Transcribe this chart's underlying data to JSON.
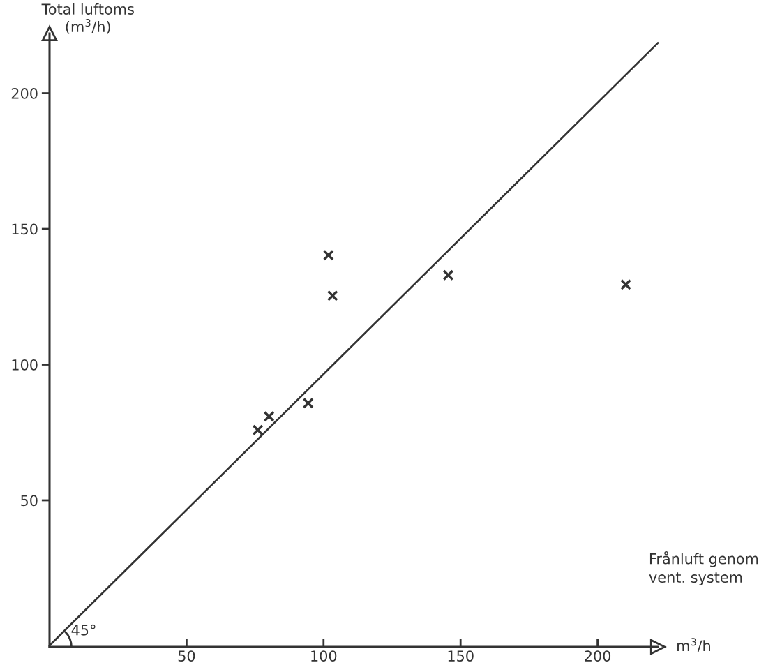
{
  "chart_data": {
    "type": "scatter",
    "ylabel": "Total luftoms\n(m$^{3}$/h)",
    "xlabel": "Frånluft genom\nvent. system",
    "x2label": "m$^{3}$/h",
    "xlim": [
      0,
      222
    ],
    "ylim": [
      -4,
      222
    ],
    "xticks": [
      50,
      100,
      150,
      200
    ],
    "yticks": [
      50,
      100,
      150,
      200
    ],
    "grid": false,
    "annotations": [
      {
        "text": "45°",
        "x": 0,
        "y": -4
      }
    ],
    "series": [
      {
        "marker": "cross",
        "color": "#333333",
        "x": [
          76,
          80.1,
          94.4,
          101.8,
          103.3,
          145.5,
          210.3
        ],
        "values": [
          75.9,
          80.9,
          85.8,
          140.3,
          125.4,
          133,
          129.5
        ]
      },
      {
        "type": "line",
        "color": "#333333",
        "x": [
          0,
          222
        ],
        "values": [
          -3.5,
          218.5
        ]
      }
    ]
  }
}
